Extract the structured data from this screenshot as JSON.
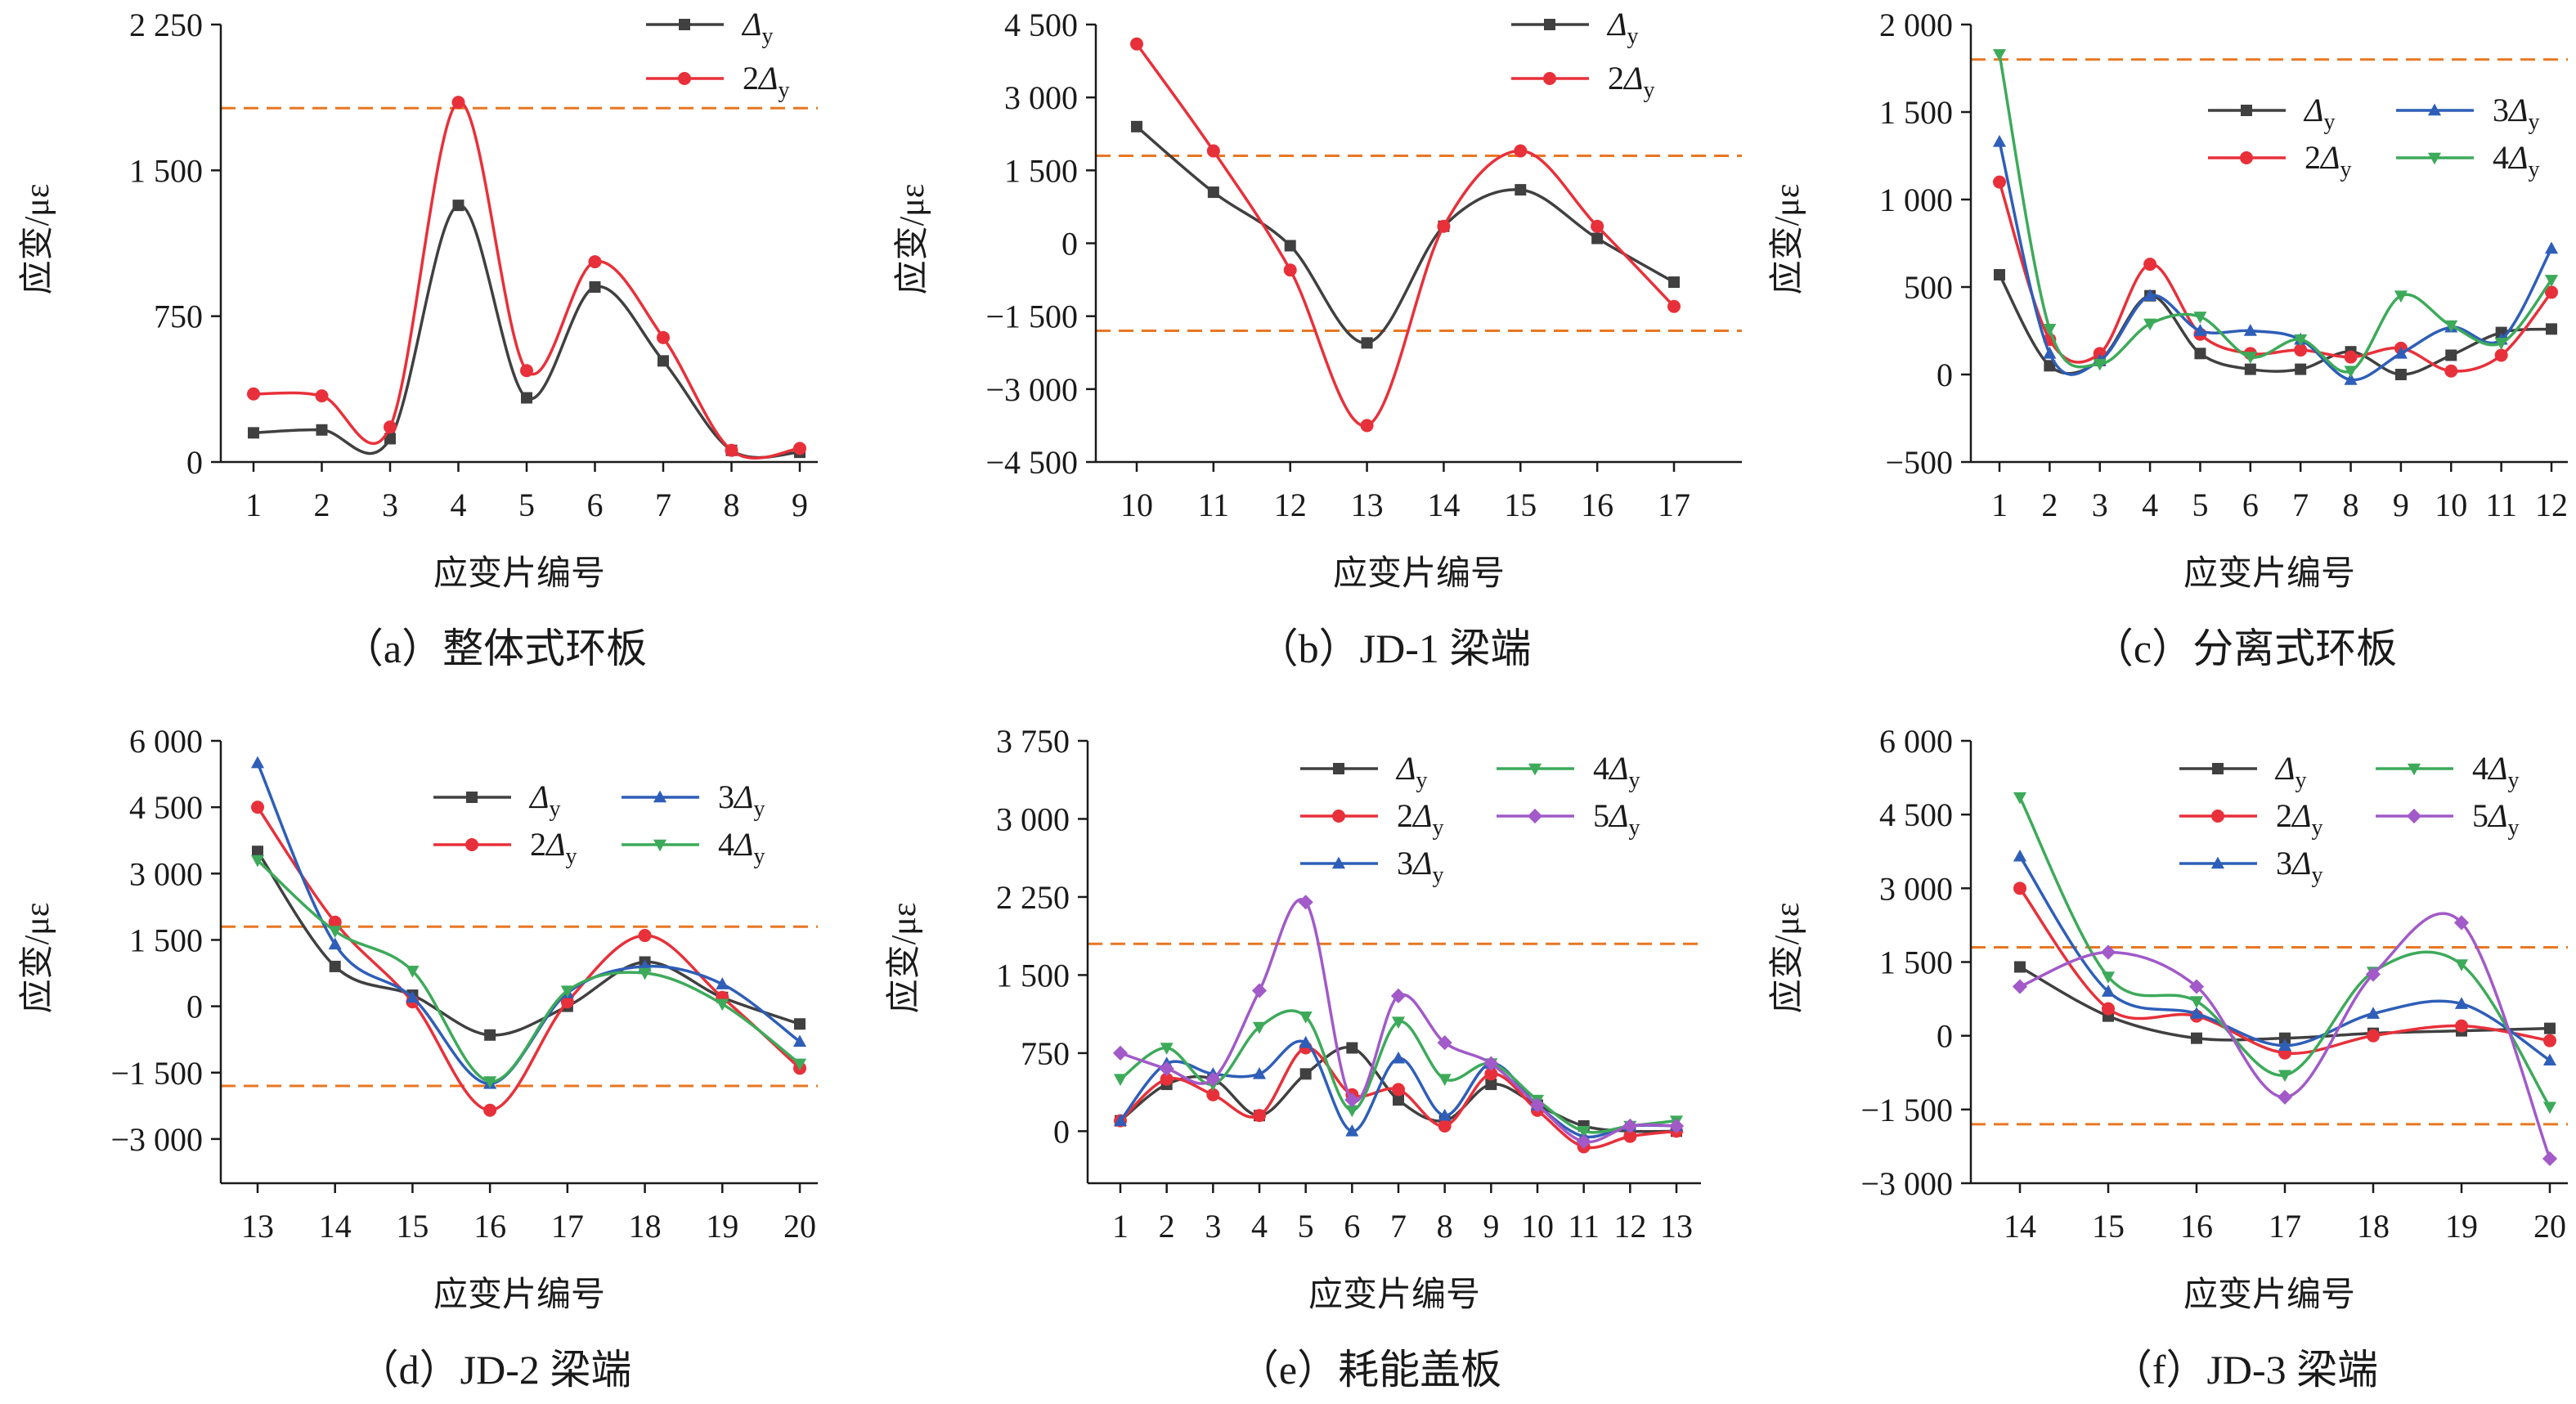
{
  "colors": {
    "Δy": "#404040",
    "2Δy": "#E8303A",
    "3Δy": "#2E5EB8",
    "4Δy": "#3DAA5A",
    "5Δy": "#A15AC8",
    "reference": "#E87722"
  },
  "markers": {
    "Δy": "square",
    "2Δy": "circle",
    "3Δy": "triangle-up",
    "4Δy": "triangle-down",
    "5Δy": "diamond"
  },
  "chart_data": [
    {
      "id": "a",
      "type": "line",
      "caption": "（a）整体式环板",
      "xlabel": "应变片编号",
      "ylabel": "应变/με",
      "categories": [
        "1",
        "2",
        "3",
        "4",
        "5",
        "6",
        "7",
        "8",
        "9"
      ],
      "ylim": [
        0,
        2250
      ],
      "yticks": [
        0,
        750,
        1500,
        2250
      ],
      "ytick_labels": [
        "0",
        "750",
        "1 500",
        "2 250"
      ],
      "reference_lines": [
        1820
      ],
      "legend_position": "top-right",
      "legend_layout": "single-column",
      "series": [
        {
          "name": "Δy",
          "legend_coef": "",
          "values": [
            150,
            165,
            120,
            1320,
            330,
            900,
            520,
            60,
            50
          ]
        },
        {
          "name": "2Δy",
          "legend_coef": "2",
          "values": [
            350,
            340,
            180,
            1850,
            470,
            1030,
            640,
            60,
            70
          ]
        }
      ]
    },
    {
      "id": "b",
      "type": "line",
      "caption": "（b）JD-1 梁端",
      "xlabel": "应变片编号",
      "ylabel": "应变/με",
      "categories": [
        "10",
        "11",
        "12",
        "13",
        "14",
        "15",
        "16",
        "17"
      ],
      "ylim": [
        -4500,
        4500
      ],
      "yticks": [
        -4500,
        -3000,
        -1500,
        0,
        1500,
        3000,
        4500
      ],
      "ytick_labels": [
        "−4 500",
        "−3 000",
        "−1 500",
        "0",
        "1 500",
        "3 000",
        "4 500"
      ],
      "reference_lines": [
        1800,
        -1800
      ],
      "legend_position": "top-right",
      "legend_layout": "single-column",
      "series": [
        {
          "name": "Δy",
          "legend_coef": "",
          "values": [
            2400,
            1050,
            -50,
            -2050,
            350,
            1100,
            100,
            -800
          ]
        },
        {
          "name": "2Δy",
          "legend_coef": "2",
          "values": [
            4100,
            1900,
            -550,
            -3750,
            350,
            1900,
            350,
            -1300
          ]
        }
      ]
    },
    {
      "id": "c",
      "type": "line",
      "caption": "（c）分离式环板",
      "xlabel": "应变片编号",
      "ylabel": "应变/με",
      "categories": [
        "1",
        "2",
        "3",
        "4",
        "5",
        "6",
        "7",
        "8",
        "9",
        "10",
        "11",
        "12"
      ],
      "ylim": [
        -500,
        2000
      ],
      "yticks": [
        -500,
        0,
        500,
        1000,
        1500,
        2000
      ],
      "ytick_labels": [
        "−500",
        "0",
        "500",
        "1 000",
        "1 500",
        "2 000"
      ],
      "reference_lines": [
        1800
      ],
      "legend_position": "top-right",
      "legend_layout": "two-columns",
      "series": [
        {
          "name": "Δy",
          "legend_coef": "",
          "values": [
            570,
            50,
            80,
            450,
            120,
            30,
            30,
            130,
            0,
            110,
            240,
            260
          ]
        },
        {
          "name": "2Δy",
          "legend_coef": "2",
          "values": [
            1100,
            200,
            120,
            630,
            230,
            120,
            140,
            100,
            150,
            20,
            110,
            470
          ]
        },
        {
          "name": "3Δy",
          "legend_coef": "3",
          "values": [
            1330,
            120,
            80,
            450,
            250,
            250,
            200,
            -30,
            120,
            270,
            200,
            720
          ]
        },
        {
          "name": "4Δy",
          "legend_coef": "4",
          "values": [
            1830,
            260,
            60,
            290,
            330,
            100,
            200,
            20,
            450,
            280,
            180,
            540
          ]
        }
      ]
    },
    {
      "id": "d",
      "type": "line",
      "caption": "（d）JD-2 梁端",
      "xlabel": "应变片编号",
      "ylabel": "应变/με",
      "categories": [
        "13",
        "14",
        "15",
        "16",
        "17",
        "18",
        "19",
        "20"
      ],
      "ylim": [
        -4000,
        6000
      ],
      "yticks": [
        -3000,
        -1500,
        0,
        1500,
        3000,
        4500,
        6000
      ],
      "ytick_labels": [
        "−3 000",
        "−1 500",
        "0",
        "1 500",
        "3 000",
        "4 500",
        "6 000"
      ],
      "reference_lines": [
        1800,
        -1800
      ],
      "legend_position": "top-right",
      "legend_layout": "two-columns",
      "series": [
        {
          "name": "Δy",
          "legend_coef": "",
          "values": [
            3500,
            900,
            250,
            -650,
            0,
            1000,
            200,
            -400
          ]
        },
        {
          "name": "2Δy",
          "legend_coef": "2",
          "values": [
            4500,
            1900,
            100,
            -2350,
            100,
            1600,
            200,
            -1400
          ]
        },
        {
          "name": "3Δy",
          "legend_coef": "3",
          "values": [
            5500,
            1400,
            200,
            -1750,
            300,
            900,
            500,
            -800
          ]
        },
        {
          "name": "4Δy",
          "legend_coef": "4",
          "values": [
            3300,
            1700,
            800,
            -1700,
            350,
            750,
            50,
            -1300
          ]
        }
      ]
    },
    {
      "id": "e",
      "type": "line",
      "caption": "（e）耗能盖板",
      "xlabel": "应变片编号",
      "ylabel": "应变/με",
      "categories": [
        "1",
        "2",
        "3",
        "4",
        "5",
        "6",
        "7",
        "8",
        "9",
        "10",
        "11",
        "12",
        "13"
      ],
      "ylim": [
        -500,
        3750
      ],
      "yticks": [
        0,
        750,
        1500,
        2250,
        3000,
        3750
      ],
      "ytick_labels": [
        "0",
        "750",
        "1 500",
        "2 250",
        "3 000",
        "3 750"
      ],
      "reference_lines": [
        1800
      ],
      "legend_position": "top-right",
      "legend_layout": "two-columns",
      "series": [
        {
          "name": "Δy",
          "legend_coef": "",
          "values": [
            100,
            450,
            500,
            150,
            550,
            800,
            300,
            100,
            450,
            250,
            50,
            0,
            0
          ]
        },
        {
          "name": "2Δy",
          "legend_coef": "2",
          "values": [
            100,
            500,
            350,
            150,
            800,
            350,
            400,
            50,
            550,
            200,
            -150,
            -50,
            0
          ]
        },
        {
          "name": "3Δy",
          "legend_coef": "3",
          "values": [
            100,
            650,
            550,
            550,
            850,
            0,
            700,
            150,
            650,
            250,
            -50,
            50,
            50
          ]
        },
        {
          "name": "4Δy",
          "legend_coef": "4",
          "values": [
            500,
            800,
            450,
            1000,
            1100,
            200,
            1050,
            500,
            650,
            300,
            0,
            50,
            100
          ]
        },
        {
          "name": "5Δy",
          "legend_coef": "5",
          "values": [
            750,
            600,
            500,
            1350,
            2200,
            300,
            1300,
            850,
            650,
            250,
            -100,
            50,
            50
          ]
        }
      ]
    },
    {
      "id": "f",
      "type": "line",
      "caption": "（f）JD-3 梁端",
      "xlabel": "应变片编号",
      "ylabel": "应变/με",
      "categories": [
        "14",
        "15",
        "16",
        "17",
        "18",
        "19",
        "20"
      ],
      "ylim": [
        -3000,
        6000
      ],
      "yticks": [
        -3000,
        -1500,
        0,
        1500,
        3000,
        4500,
        6000
      ],
      "ytick_labels": [
        "−3 000",
        "−1 500",
        "0",
        "1 500",
        "3 000",
        "4 500",
        "6 000"
      ],
      "reference_lines": [
        1800,
        -1800
      ],
      "legend_position": "top-right",
      "legend_layout": "two-columns",
      "series": [
        {
          "name": "Δy",
          "legend_coef": "",
          "values": [
            1400,
            400,
            -50,
            -50,
            50,
            100,
            150
          ]
        },
        {
          "name": "2Δy",
          "legend_coef": "2",
          "values": [
            3000,
            550,
            400,
            -350,
            0,
            200,
            -100
          ]
        },
        {
          "name": "3Δy",
          "legend_coef": "3",
          "values": [
            3650,
            900,
            450,
            -200,
            450,
            650,
            -500
          ]
        },
        {
          "name": "4Δy",
          "legend_coef": "4",
          "values": [
            4850,
            1200,
            700,
            -800,
            1300,
            1450,
            -1450
          ]
        },
        {
          "name": "5Δy",
          "legend_coef": "5",
          "values": [
            1000,
            1700,
            1000,
            -1250,
            1250,
            2300,
            -2500
          ]
        }
      ]
    }
  ]
}
